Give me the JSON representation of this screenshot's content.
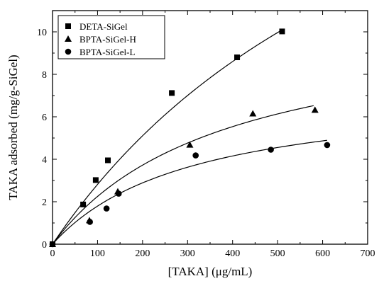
{
  "chart_data": {
    "type": "scatter",
    "xlabel": "[TAKA] (μg/mL)",
    "ylabel": "TAKA adsorbed (mg/g-SiGel)",
    "xlim": [
      0,
      700
    ],
    "ylim": [
      0,
      11
    ],
    "xticks": [
      0,
      100,
      200,
      300,
      400,
      500,
      600,
      700
    ],
    "yticks": [
      0,
      2,
      4,
      6,
      8,
      10
    ],
    "minor_ticks": {
      "x_step": 50,
      "y_step": 1
    },
    "grid": false,
    "legend_position": "top-left",
    "series": [
      {
        "name": "DETA-SiGel",
        "marker": "square",
        "color": "#000000",
        "x": [
          0,
          68,
          96,
          123,
          265,
          410,
          510
        ],
        "y": [
          0,
          1.87,
          3.02,
          3.95,
          7.12,
          8.8,
          10.02
        ],
        "fit_line": {
          "x": [
            0,
            510
          ],
          "model": "langmuir",
          "qmax": 27.3,
          "K": 0.00115
        }
      },
      {
        "name": "BPTA-SiGel-H",
        "marker": "triangle",
        "color": "#000000",
        "x": [
          0,
          82,
          145,
          305,
          445,
          583
        ],
        "y": [
          0,
          1.12,
          2.48,
          4.68,
          6.15,
          6.32
        ],
        "fit_line": {
          "x": [
            0,
            580
          ],
          "model": "langmuir",
          "qmax": 10.8,
          "K": 0.00263
        }
      },
      {
        "name": "BPTA-SiGel-L",
        "marker": "circle",
        "color": "#000000",
        "x": [
          0,
          83,
          120,
          147,
          318,
          485,
          610
        ],
        "y": [
          0,
          1.05,
          1.68,
          2.38,
          4.18,
          4.45,
          4.67
        ],
        "fit_line": {
          "x": [
            0,
            610
          ],
          "model": "langmuir",
          "qmax": 7.4,
          "K": 0.0032
        }
      }
    ]
  }
}
